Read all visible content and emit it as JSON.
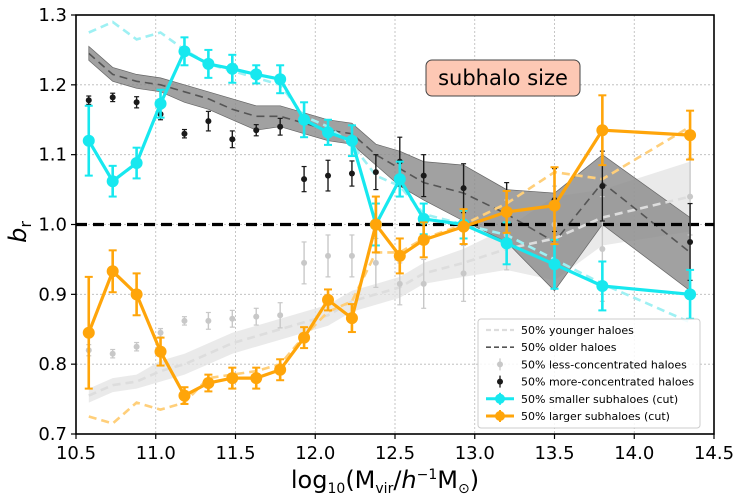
{
  "chart_data": {
    "type": "line",
    "xlabel": "log10(Mvir/h−1M⊙)",
    "ylabel": "br",
    "xlim": [
      10.5,
      14.5
    ],
    "ylim": [
      0.7,
      1.3
    ],
    "xticks": [
      10.5,
      11.0,
      11.5,
      12.0,
      12.5,
      13.0,
      13.5,
      14.0,
      14.5
    ],
    "xtick_labels": [
      "10.5",
      "11.0",
      "11.5",
      "12.0",
      "12.5",
      "13.0",
      "13.5",
      "14.0",
      "14.5"
    ],
    "yticks": [
      0.7,
      0.8,
      0.9,
      1.0,
      1.1,
      1.2,
      1.3
    ],
    "ytick_labels": [
      "0.7",
      "0.8",
      "0.9",
      "1.0",
      "1.1",
      "1.2",
      "1.3"
    ],
    "grid": true,
    "legend_position": "lower-right",
    "reference_line": 1.0,
    "annotation": "subhalo size",
    "colors": {
      "cyan": "#17e8ef",
      "orange": "#ffa50a",
      "light_cyan": "#9ef0f3",
      "light_orange": "#ffcf7a",
      "gray_dark": "#555555",
      "gray_light": "#cccccc",
      "band_dark": "#8a8a8a",
      "band_light": "#e3e3e3",
      "annot_fill": "#fdc8b4"
    },
    "series": [
      {
        "name": "50% younger haloes",
        "kind": "dashed",
        "color": "#dddddd",
        "x": [
          10.58,
          10.73,
          10.88,
          11.03,
          11.18,
          11.33,
          11.48,
          11.63,
          11.78,
          11.93,
          12.08,
          12.23,
          12.38,
          12.53,
          12.68,
          12.93,
          13.2,
          13.5,
          13.8,
          14.35
        ],
        "values": [
          0.755,
          0.77,
          0.775,
          0.79,
          0.8,
          0.815,
          0.83,
          0.84,
          0.85,
          0.86,
          0.87,
          0.89,
          0.9,
          0.91,
          0.93,
          0.945,
          0.965,
          0.98,
          1.01,
          1.04
        ],
        "band_low": [
          0.745,
          0.76,
          0.765,
          0.775,
          0.785,
          0.8,
          0.815,
          0.825,
          0.835,
          0.845,
          0.855,
          0.875,
          0.885,
          0.895,
          0.915,
          0.925,
          0.935,
          0.92,
          0.97,
          0.99
        ],
        "band_high": [
          0.765,
          0.78,
          0.785,
          0.805,
          0.815,
          0.83,
          0.845,
          0.855,
          0.865,
          0.875,
          0.885,
          0.905,
          0.915,
          0.925,
          0.945,
          0.965,
          0.995,
          1.04,
          1.05,
          1.09
        ]
      },
      {
        "name": "50% older haloes",
        "kind": "dashed",
        "color": "#555555",
        "x": [
          10.58,
          10.73,
          10.88,
          11.03,
          11.18,
          11.33,
          11.48,
          11.63,
          11.78,
          11.93,
          12.08,
          12.23,
          12.38,
          12.53,
          12.68,
          12.93,
          13.2,
          13.5,
          13.8,
          14.35
        ],
        "values": [
          1.245,
          1.215,
          1.205,
          1.2,
          1.19,
          1.18,
          1.165,
          1.155,
          1.155,
          1.145,
          1.135,
          1.13,
          1.1,
          1.08,
          1.06,
          1.045,
          1.015,
          0.975,
          1.06,
          0.96
        ],
        "band_low": [
          1.235,
          1.205,
          1.195,
          1.19,
          1.175,
          1.165,
          1.15,
          1.135,
          1.14,
          1.13,
          1.12,
          1.115,
          1.085,
          1.055,
          1.035,
          1.005,
          0.975,
          0.905,
          1.0,
          0.905
        ],
        "band_high": [
          1.255,
          1.225,
          1.215,
          1.21,
          1.2,
          1.19,
          1.18,
          1.17,
          1.17,
          1.16,
          1.15,
          1.145,
          1.115,
          1.105,
          1.09,
          1.085,
          1.05,
          1.045,
          1.1,
          1.01
        ]
      },
      {
        "name": "50% less-concentrated haloes",
        "kind": "errorbar",
        "color": "#c8c8c8",
        "x": [
          10.58,
          10.73,
          10.88,
          11.03,
          11.18,
          11.33,
          11.48,
          11.63,
          11.78,
          11.93,
          12.08,
          12.23,
          12.38,
          12.53,
          12.68,
          12.93,
          13.2,
          13.5,
          13.8,
          14.35
        ],
        "values": [
          0.82,
          0.815,
          0.825,
          0.845,
          0.862,
          0.862,
          0.865,
          0.868,
          0.87,
          0.945,
          0.955,
          0.955,
          0.945,
          0.915,
          0.915,
          0.93,
          0.985,
          1.0,
          0.965,
          1.04
        ],
        "errors": [
          0.008,
          0.006,
          0.006,
          0.006,
          0.006,
          0.012,
          0.012,
          0.012,
          0.018,
          0.03,
          0.03,
          0.03,
          0.035,
          0.03,
          0.035,
          0.04,
          0.05,
          0.055,
          0.075,
          0.055
        ]
      },
      {
        "name": "50% more-concentrated haloes",
        "kind": "errorbar",
        "color": "#1a1a1a",
        "x": [
          10.58,
          10.73,
          10.88,
          11.03,
          11.18,
          11.33,
          11.48,
          11.63,
          11.78,
          11.93,
          12.08,
          12.23,
          12.38,
          12.53,
          12.68,
          12.93,
          13.2,
          13.5,
          13.8,
          14.35
        ],
        "values": [
          1.178,
          1.182,
          1.175,
          1.158,
          1.13,
          1.148,
          1.122,
          1.135,
          1.14,
          1.065,
          1.07,
          1.073,
          1.075,
          1.09,
          1.07,
          1.052,
          1.02,
          1.035,
          1.055,
          0.975
        ],
        "errors": [
          0.006,
          0.006,
          0.008,
          0.008,
          0.006,
          0.014,
          0.012,
          0.008,
          0.012,
          0.018,
          0.022,
          0.018,
          0.025,
          0.035,
          0.03,
          0.035,
          0.04,
          0.045,
          0.05,
          0.055
        ]
      },
      {
        "name": "smaller younger dashed",
        "kind": "dashed",
        "color": "#9ef0f3",
        "x": [
          10.58,
          10.73,
          10.88,
          11.03,
          11.18,
          11.33,
          11.48,
          11.63,
          11.78,
          11.93,
          12.08,
          12.23,
          12.38,
          12.53,
          12.68,
          12.93,
          13.2,
          13.5,
          13.8,
          14.35
        ],
        "values": [
          1.275,
          1.29,
          1.265,
          1.275,
          1.25,
          1.23,
          1.22,
          1.21,
          1.2,
          1.155,
          1.14,
          1.115,
          1.07,
          1.055,
          1.015,
          1.0,
          0.985,
          0.95,
          0.915,
          0.86
        ]
      },
      {
        "name": "larger younger dashed",
        "kind": "dashed",
        "color": "#ffcf7a",
        "x": [
          10.58,
          10.73,
          10.88,
          11.03,
          11.18,
          11.33,
          11.48,
          11.63,
          11.78,
          11.93,
          12.08,
          12.23,
          12.38,
          12.53,
          12.68,
          12.93,
          13.2,
          13.5,
          13.8,
          14.35
        ],
        "values": [
          0.725,
          0.715,
          0.745,
          0.735,
          0.745,
          0.78,
          0.785,
          0.79,
          0.8,
          0.84,
          0.875,
          0.89,
          0.96,
          0.96,
          0.98,
          1.0,
          1.03,
          1.075,
          1.065,
          1.14
        ]
      },
      {
        "name": "50% smaller subhaloes (cut)",
        "kind": "marker-line",
        "color": "#17e8ef",
        "x": [
          10.58,
          10.73,
          10.88,
          11.03,
          11.18,
          11.33,
          11.48,
          11.63,
          11.78,
          11.93,
          12.08,
          12.23,
          12.38,
          12.53,
          12.68,
          12.93,
          13.2,
          13.5,
          13.8,
          14.35
        ],
        "values": [
          1.12,
          1.062,
          1.088,
          1.173,
          1.248,
          1.23,
          1.223,
          1.215,
          1.208,
          1.15,
          1.132,
          1.12,
          1.0,
          1.065,
          1.008,
          1.0,
          0.973,
          0.943,
          0.912,
          0.9
        ],
        "errors": [
          0.05,
          0.022,
          0.022,
          0.02,
          0.02,
          0.02,
          0.02,
          0.013,
          0.02,
          0.025,
          0.018,
          0.022,
          0.03,
          0.025,
          0.022,
          0.02,
          0.03,
          0.035,
          0.035,
          0.035
        ]
      },
      {
        "name": "50% larger subhaloes (cut)",
        "kind": "marker-line",
        "color": "#ffa50a",
        "x": [
          10.58,
          10.73,
          10.88,
          11.03,
          11.18,
          11.33,
          11.48,
          11.63,
          11.78,
          11.93,
          12.08,
          12.23,
          12.38,
          12.53,
          12.68,
          12.93,
          13.2,
          13.5,
          13.8,
          14.35
        ],
        "values": [
          0.845,
          0.933,
          0.9,
          0.818,
          0.755,
          0.773,
          0.78,
          0.78,
          0.792,
          0.838,
          0.892,
          0.866,
          1.0,
          0.955,
          0.978,
          0.997,
          1.018,
          1.027,
          1.135,
          1.128
        ],
        "errors": [
          0.08,
          0.03,
          0.03,
          0.02,
          0.012,
          0.012,
          0.015,
          0.015,
          0.015,
          0.015,
          0.015,
          0.02,
          0.04,
          0.025,
          0.025,
          0.025,
          0.03,
          0.055,
          0.05,
          0.035
        ]
      }
    ],
    "legend": [
      {
        "label": "50% younger haloes",
        "style": "dashed",
        "color": "#dddddd"
      },
      {
        "label": "50% older haloes",
        "style": "dashed",
        "color": "#555555"
      },
      {
        "label": "50% less-concentrated haloes",
        "style": "errorbar",
        "color": "#c8c8c8"
      },
      {
        "label": "50% more-concentrated haloes",
        "style": "errorbar",
        "color": "#1a1a1a"
      },
      {
        "label": "50% smaller subhaloes (cut)",
        "style": "marker-line",
        "color": "#17e8ef"
      },
      {
        "label": "50% larger subhaloes (cut)",
        "style": "marker-line",
        "color": "#ffa50a"
      }
    ]
  }
}
